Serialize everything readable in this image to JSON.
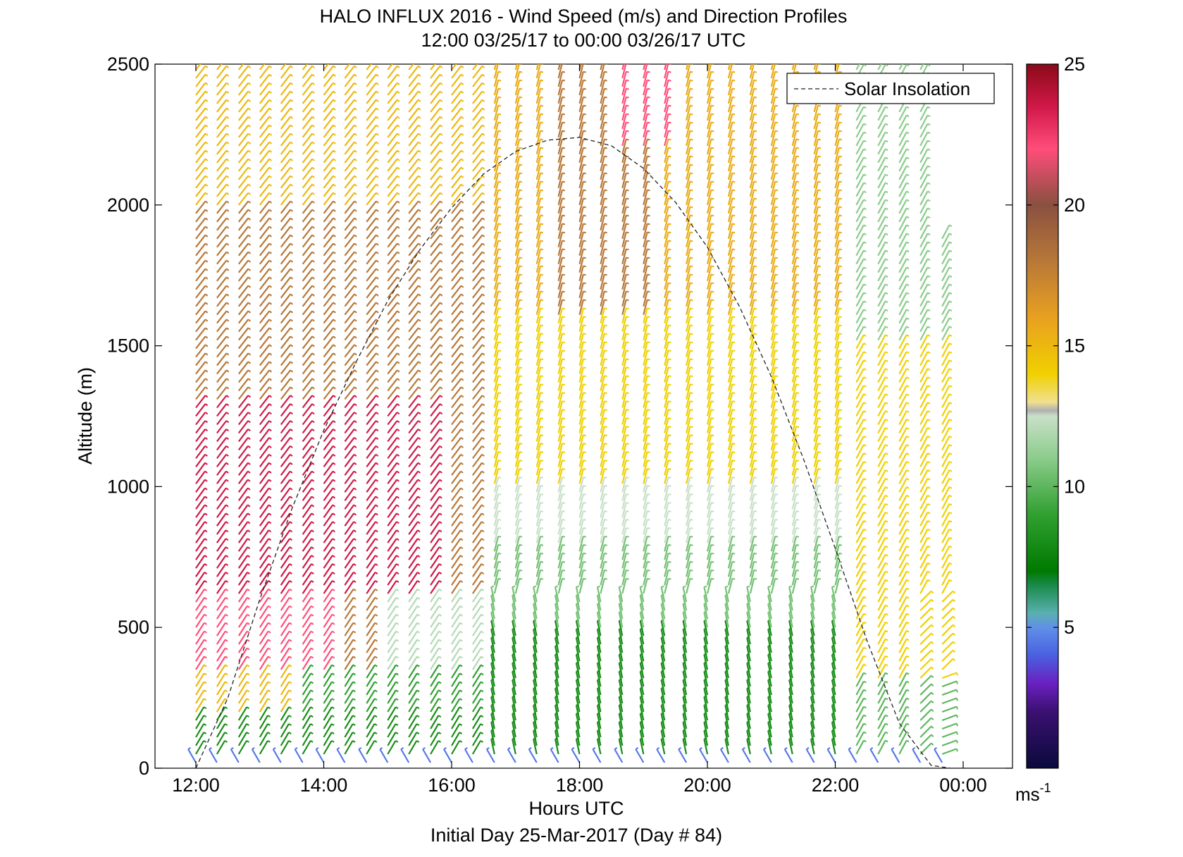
{
  "chart_data": {
    "type": "wind_barb_profile",
    "title": "HALO INFLUX 2016 - Wind Speed (m/s) and Direction Profiles",
    "subtitle": "12:00 03/25/17 to 00:00 03/26/17  UTC",
    "xlabel": "Hours UTC",
    "xlabel2": "Initial Day 25-Mar-2017 (Day # 84)",
    "ylabel": "Altitude (m)",
    "xlim": [
      12,
      24
    ],
    "ylim": [
      0,
      2500
    ],
    "x_ticks": [
      12,
      14,
      16,
      18,
      20,
      22,
      24
    ],
    "x_tick_labels": [
      "12:00",
      "14:00",
      "16:00",
      "18:00",
      "20:00",
      "22:00",
      "00:00"
    ],
    "y_ticks": [
      0,
      500,
      1000,
      1500,
      2000,
      2500
    ],
    "y_tick_labels": [
      "0",
      "500",
      "1000",
      "1500",
      "2000",
      "2500"
    ],
    "legend": {
      "entries": [
        "Solar Insolation"
      ],
      "placement": "top-right"
    },
    "colorbar": {
      "range": [
        0,
        25
      ],
      "ticks": [
        5,
        10,
        15,
        20,
        25
      ],
      "tick_labels": [
        "5",
        "10",
        "15",
        "20",
        "25"
      ],
      "unit_label": "ms",
      "unit_exponent": "-1",
      "colors": [
        {
          "v": 0,
          "c": "#0a0a3c"
        },
        {
          "v": 2,
          "c": "#3a1070"
        },
        {
          "v": 3,
          "c": "#6a20c0"
        },
        {
          "v": 4,
          "c": "#4a60e0"
        },
        {
          "v": 5,
          "c": "#6090e8"
        },
        {
          "v": 5.5,
          "c": "#5ab0b0"
        },
        {
          "v": 6.5,
          "c": "#1a8a4a"
        },
        {
          "v": 7,
          "c": "#007a00"
        },
        {
          "v": 9,
          "c": "#30a030"
        },
        {
          "v": 11,
          "c": "#8ccc8c"
        },
        {
          "v": 12.5,
          "c": "#c8e0c8"
        },
        {
          "v": 12.7,
          "c": "#b0b0b0"
        },
        {
          "v": 13.0,
          "c": "#f0e090"
        },
        {
          "v": 14,
          "c": "#f0d000"
        },
        {
          "v": 16,
          "c": "#e8a020"
        },
        {
          "v": 18,
          "c": "#b87838"
        },
        {
          "v": 20,
          "c": "#8a5040"
        },
        {
          "v": 22,
          "c": "#ff4d7a"
        },
        {
          "v": 23.5,
          "c": "#d01848"
        },
        {
          "v": 25,
          "c": "#8a0a18"
        }
      ]
    },
    "solar_insolation": {
      "x": [
        12.0,
        12.5,
        13.0,
        13.5,
        14.0,
        14.5,
        15.0,
        15.5,
        16.0,
        16.5,
        17.0,
        17.5,
        18.0,
        18.5,
        19.0,
        19.5,
        20.0,
        20.5,
        21.0,
        21.5,
        22.0,
        22.5,
        23.0,
        23.5,
        23.8
      ],
      "y": [
        0,
        250,
        600,
        920,
        1200,
        1440,
        1660,
        1840,
        1990,
        2110,
        2190,
        2230,
        2240,
        2210,
        2130,
        2010,
        1850,
        1640,
        1390,
        1100,
        780,
        450,
        160,
        10,
        0
      ]
    },
    "profiles_summary": {
      "times_hours": [
        12.0,
        12.33,
        12.67,
        13.0,
        13.33,
        13.67,
        14.0,
        14.33,
        14.67,
        15.0,
        15.33,
        15.67,
        16.0,
        16.33,
        16.67,
        17.0,
        17.33,
        17.67,
        18.0,
        18.33,
        18.67,
        19.0,
        19.33,
        19.67,
        20.0,
        20.33,
        20.67,
        21.0,
        21.33,
        21.67,
        22.0,
        22.33,
        22.67,
        23.0,
        23.33,
        23.67
      ],
      "altitude_step_m": 30,
      "speed_ms_by_altitude_and_time": "piecewise: 12:00-16:30 speed ~22-24 m/s between 600-1300 m, ~17-19 m/s at 1300-2000 m, ~13-16 m/s above 2000 m; 16:30-22:00 speed ~8 m/s below 500 m, ~10-12 m/s 500-1000 m, ~14-16 m/s 1000-2500 m; 18:30-19:30 speed ~21-24 m/s above 2200 m; 22:00-24:00 speed ~9-12 m/s below 300 m, ~13-16 m/s 300-1500 m; lowest 50 m ~4-5 m/s",
      "direction_note": "Barbs mostly from the south-southwest veering to west with height in early hours; southerly later; westerly near 23:30 surface"
    }
  }
}
